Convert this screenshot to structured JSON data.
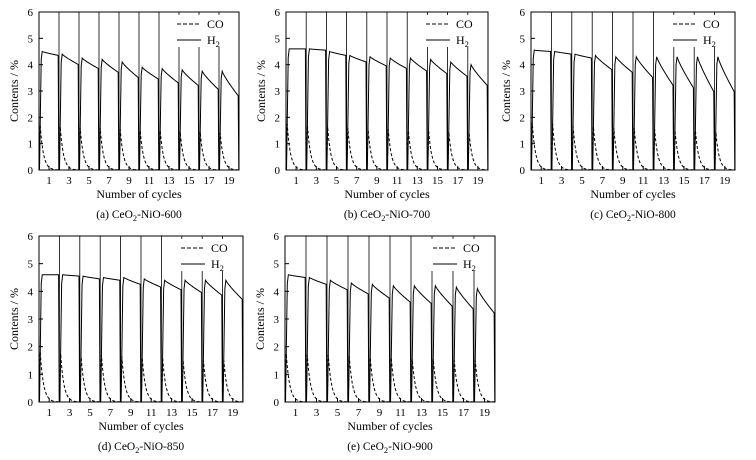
{
  "figure": {
    "ylabel": "Contents / %",
    "xlabel": "Number of cycles",
    "xticks": [
      "1",
      "3",
      "5",
      "7",
      "9",
      "11",
      "13",
      "15",
      "17",
      "19"
    ],
    "yticks": [
      "0",
      "1",
      "2",
      "3",
      "4",
      "5",
      "6"
    ],
    "legend": {
      "co": "CO",
      "h2": "H",
      "h2_sub": "2"
    }
  },
  "chart_data": [
    {
      "type": "line",
      "caption": {
        "prefix": "(a) CeO",
        "sub": "2",
        "suffix": "-NiO-600"
      },
      "xlabel": "Number of cycles",
      "ylabel": "Contents / %",
      "xlim": [
        0,
        20
      ],
      "ylim": [
        0,
        6
      ],
      "legend_position": "top-right",
      "series": [
        {
          "name": "CO",
          "style": "dashed",
          "cycle_peaks": [
            1.7,
            1.65,
            1.6,
            1.6,
            1.55,
            1.5,
            1.5,
            1.45,
            1.45,
            1.4
          ]
        },
        {
          "name": "H2",
          "style": "solid",
          "cycle_start": [
            4.5,
            4.4,
            4.25,
            4.2,
            4.1,
            3.9,
            3.85,
            3.8,
            3.75,
            3.75
          ],
          "cycle_end": [
            4.35,
            4.0,
            3.85,
            3.7,
            3.5,
            3.45,
            3.3,
            3.2,
            3.05,
            2.8
          ]
        }
      ]
    },
    {
      "type": "line",
      "caption": {
        "prefix": "(b) CeO",
        "sub": "2",
        "suffix": "-NiO-700"
      },
      "xlabel": "Number of cycles",
      "ylabel": "Contents / %",
      "xlim": [
        0,
        20
      ],
      "ylim": [
        0,
        6
      ],
      "legend_position": "top-right",
      "series": [
        {
          "name": "CO",
          "style": "dashed",
          "cycle_peaks": [
            1.75,
            1.7,
            1.65,
            1.6,
            1.6,
            1.55,
            1.5,
            1.5,
            1.45,
            1.45
          ]
        },
        {
          "name": "H2",
          "style": "solid",
          "cycle_start": [
            4.6,
            4.6,
            4.5,
            4.35,
            4.3,
            4.25,
            4.25,
            4.2,
            4.1,
            4.0
          ],
          "cycle_end": [
            4.6,
            4.55,
            4.35,
            4.1,
            3.95,
            3.85,
            3.75,
            3.65,
            3.55,
            3.2
          ]
        }
      ]
    },
    {
      "type": "line",
      "caption": {
        "prefix": "(c) CeO",
        "sub": "2",
        "suffix": "-NiO-800"
      },
      "xlabel": "Number of cycles",
      "ylabel": "Contents / %",
      "xlim": [
        0,
        20
      ],
      "ylim": [
        0,
        6
      ],
      "legend_position": "top-right",
      "series": [
        {
          "name": "CO",
          "style": "dashed",
          "cycle_peaks": [
            1.8,
            1.75,
            1.7,
            1.65,
            1.6,
            1.6,
            1.55,
            1.5,
            1.5,
            1.45
          ]
        },
        {
          "name": "H2",
          "style": "solid",
          "cycle_start": [
            4.55,
            4.5,
            4.4,
            4.35,
            4.3,
            4.3,
            4.3,
            4.3,
            4.3,
            4.3
          ],
          "cycle_end": [
            4.5,
            4.4,
            4.25,
            3.8,
            3.7,
            3.5,
            3.2,
            3.1,
            2.95,
            2.95
          ]
        }
      ]
    },
    {
      "type": "line",
      "caption": {
        "prefix": "(d) CeO",
        "sub": "2",
        "suffix": "-NiO-850"
      },
      "xlabel": "Number of cycles",
      "ylabel": "Contents / %",
      "xlim": [
        0,
        20
      ],
      "ylim": [
        0,
        6
      ],
      "legend_position": "top-right",
      "series": [
        {
          "name": "CO",
          "style": "dashed",
          "cycle_peaks": [
            1.8,
            1.75,
            1.7,
            1.7,
            1.65,
            1.6,
            1.6,
            1.55,
            1.5,
            1.5
          ]
        },
        {
          "name": "H2",
          "style": "solid",
          "cycle_start": [
            4.6,
            4.6,
            4.55,
            4.5,
            4.5,
            4.45,
            4.4,
            4.4,
            4.4,
            4.4
          ],
          "cycle_end": [
            4.6,
            4.55,
            4.45,
            4.4,
            4.25,
            4.15,
            4.05,
            3.95,
            3.85,
            3.7
          ]
        }
      ]
    },
    {
      "type": "line",
      "caption": {
        "prefix": "(e) CeO",
        "sub": "2",
        "suffix": "-NiO-900"
      },
      "xlabel": "Number of cycles",
      "ylabel": "Contents / %",
      "xlim": [
        0,
        20
      ],
      "ylim": [
        0,
        6
      ],
      "legend_position": "top-right",
      "series": [
        {
          "name": "CO",
          "style": "dashed",
          "cycle_peaks": [
            1.75,
            1.7,
            1.7,
            1.65,
            1.6,
            1.6,
            1.55,
            1.55,
            1.5,
            1.5
          ]
        },
        {
          "name": "H2",
          "style": "solid",
          "cycle_start": [
            4.6,
            4.5,
            4.4,
            4.3,
            4.25,
            4.2,
            4.2,
            4.2,
            4.15,
            4.1
          ],
          "cycle_end": [
            4.5,
            4.25,
            4.05,
            3.9,
            3.75,
            3.6,
            3.55,
            3.45,
            3.35,
            3.2
          ]
        }
      ]
    }
  ]
}
